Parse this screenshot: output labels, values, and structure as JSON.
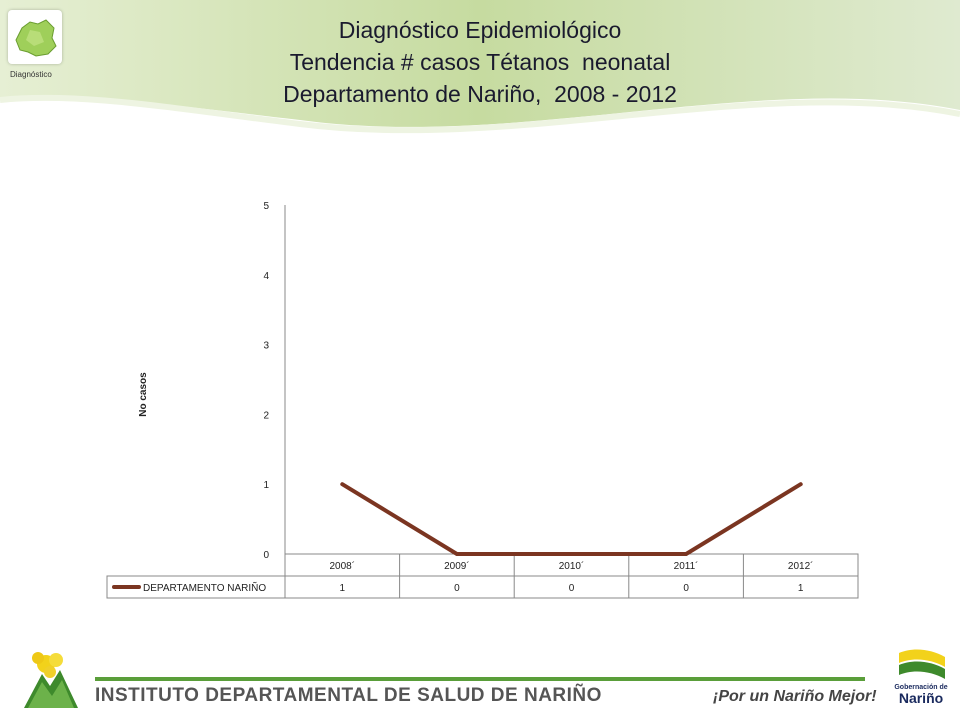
{
  "header": {
    "title_lines": [
      "Diagnóstico Epidemiológico",
      "Tendencia # casos Tétanos  neonatal",
      "Departamento de Nariño,  2008 - 2012"
    ],
    "logo_caption": "Diagnóstico"
  },
  "chart_data": {
    "type": "line",
    "categories": [
      "2008´",
      "2009´",
      "2010´",
      "2011´",
      "2012´"
    ],
    "series": [
      {
        "name": "DEPARTAMENTO NARIÑO",
        "values": [
          1,
          0,
          0,
          0,
          1
        ],
        "color": "#7b3521"
      }
    ],
    "ylabel": "No casos",
    "ylim": [
      0,
      5
    ],
    "yticks": [
      0,
      1,
      2,
      3,
      4,
      5
    ],
    "data_table": true
  },
  "footer": {
    "institute": "INSTITUTO DEPARTAMENTAL DE SALUD DE NARIÑO",
    "slogan": "¡Por un Nariño Mejor!",
    "gob_small": "Gobernación de",
    "gob_big": "Nariño"
  },
  "colors": {
    "accent_green": "#5a9e3a",
    "wave_green": "#c9dca6",
    "series_line": "#7b3521"
  }
}
